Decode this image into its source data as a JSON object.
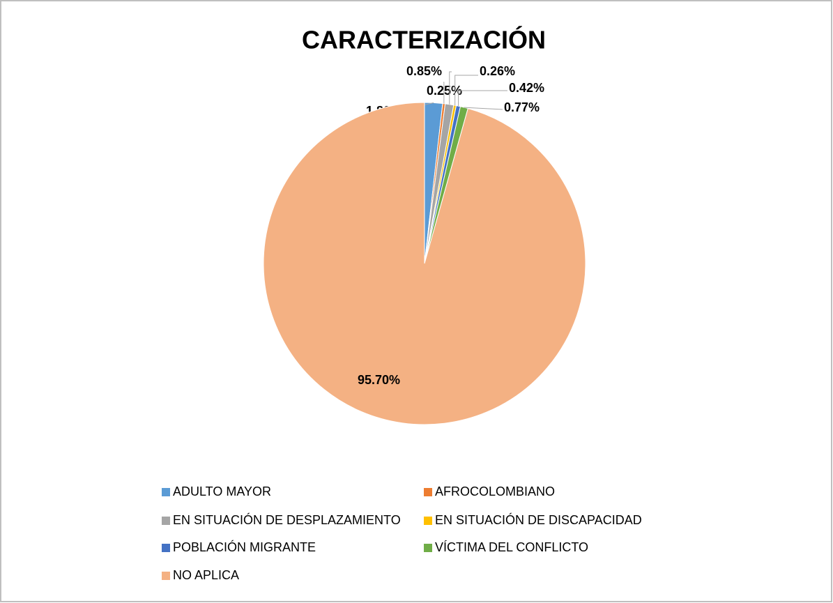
{
  "chart_data": {
    "type": "pie",
    "title": "CARACTERIZACIÓN",
    "categories": [
      "ADULTO MAYOR",
      "AFROCOLOMBIANO",
      "EN SITUACIÓN DE DESPLAZAMIENTO",
      "EN SITUACIÓN DE DISCAPACIDAD",
      "POBLACIÓN MIGRANTE",
      "VÍCTIMA DEL CONFLICTO",
      "NO APLICA"
    ],
    "values": [
      1.8,
      0.25,
      0.85,
      0.26,
      0.42,
      0.77,
      95.7
    ],
    "value_labels": [
      "1.80%",
      "0.25%",
      "0.85%",
      "0.26%",
      "0.42%",
      "0.77%",
      "95.70%"
    ],
    "colors": [
      "#5b9bd5",
      "#ed7d31",
      "#a5a5a5",
      "#ffc000",
      "#4472c4",
      "#70ad47",
      "#f4b183"
    ],
    "legend": "bottom"
  }
}
